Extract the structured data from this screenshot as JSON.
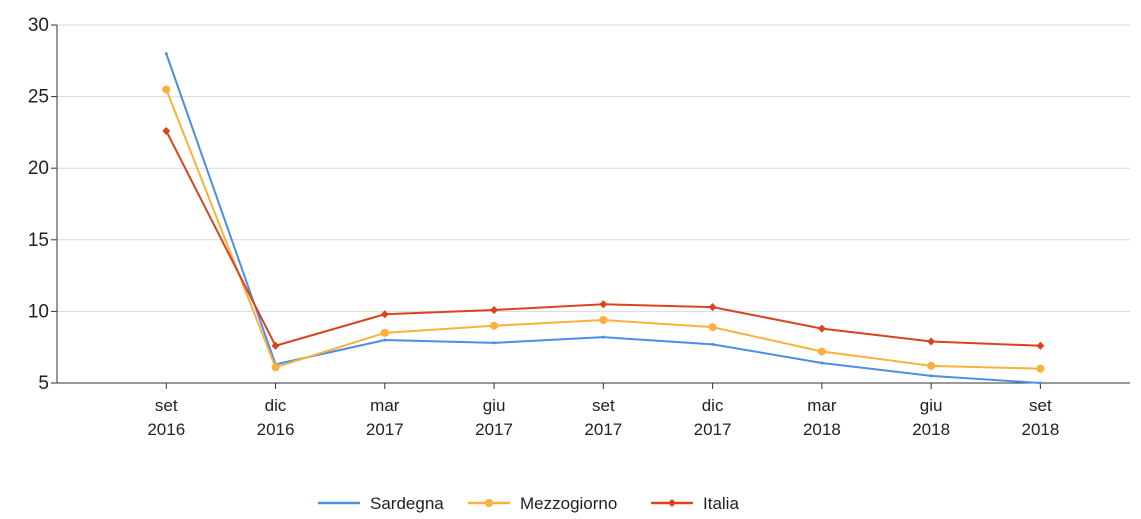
{
  "chart_data": {
    "type": "line",
    "categories": [
      "set 2016",
      "dic 2016",
      "mar 2017",
      "giu 2017",
      "set 2017",
      "dic 2017",
      "mar 2018",
      "giu 2018",
      "set 2018"
    ],
    "series": [
      {
        "name": "Sardegna",
        "color": "#4a8fe7",
        "values": [
          28,
          6.3,
          8.0,
          7.8,
          8.2,
          7.7,
          6.4,
          5.5,
          5.0
        ]
      },
      {
        "name": "Mezzogiorno",
        "color": "#fbb03b",
        "values": [
          25.5,
          6.1,
          8.5,
          9.0,
          9.4,
          8.9,
          7.2,
          6.2,
          6.0
        ]
      },
      {
        "name": "Italia",
        "color": "#d9431e",
        "values": [
          22.6,
          7.6,
          9.8,
          10.1,
          10.5,
          10.3,
          8.8,
          7.9,
          7.6
        ]
      }
    ],
    "ylim": [
      5,
      30
    ],
    "yticks": [
      5,
      10,
      15,
      20,
      25,
      30
    ],
    "grid": true,
    "legend": "bottom"
  }
}
